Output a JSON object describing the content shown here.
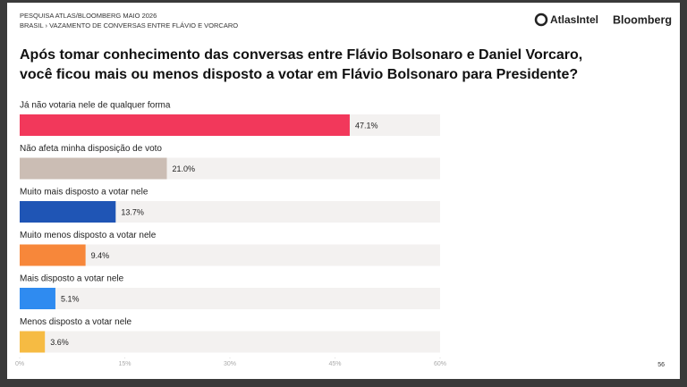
{
  "header": {
    "source": "PESQUISA ATLAS/BLOOMBERG MAIO 2026",
    "subtitle": "BRASIL › VAZAMENTO DE CONVERSAS ENTRE FLÁVIO E VORCARO",
    "logos": [
      "AtlasIntel",
      "Bloomberg"
    ],
    "page": "56"
  },
  "chart_data": {
    "type": "barh",
    "title": [
      "Após tomar conhecimento das conversas entre Flávio Bolsonaro e Daniel Vorcaro,",
      "você ficou mais ou menos disposto a votar em Flávio Bolsonaro para Presidente?"
    ],
    "categories": [
      "Já não votaria nele de qualquer forma",
      "Não afeta minha disposição de voto",
      "Muito mais disposto a votar nele",
      "Muito menos disposto a votar nele",
      "Mais disposto a votar nele",
      "Menos disposto a votar nele"
    ],
    "values": [
      47.1,
      21.0,
      13.7,
      9.4,
      5.1,
      3.6
    ],
    "value_labels": [
      "47.1%",
      "21.0%",
      "13.7%",
      "9.4%",
      "5.1%",
      "3.6%"
    ],
    "colors": [
      "#f2385b",
      "#cbbdb4",
      "#1f55b5",
      "#f7873a",
      "#2f8bf0",
      "#f6bb43"
    ],
    "xlim": [
      0,
      60
    ],
    "xticks": [
      {
        "value": 0,
        "label": "0%"
      },
      {
        "value": 15,
        "label": "15%"
      },
      {
        "value": 30,
        "label": "30%"
      },
      {
        "value": 45,
        "label": "45%"
      },
      {
        "value": 60,
        "label": "60%"
      }
    ]
  }
}
